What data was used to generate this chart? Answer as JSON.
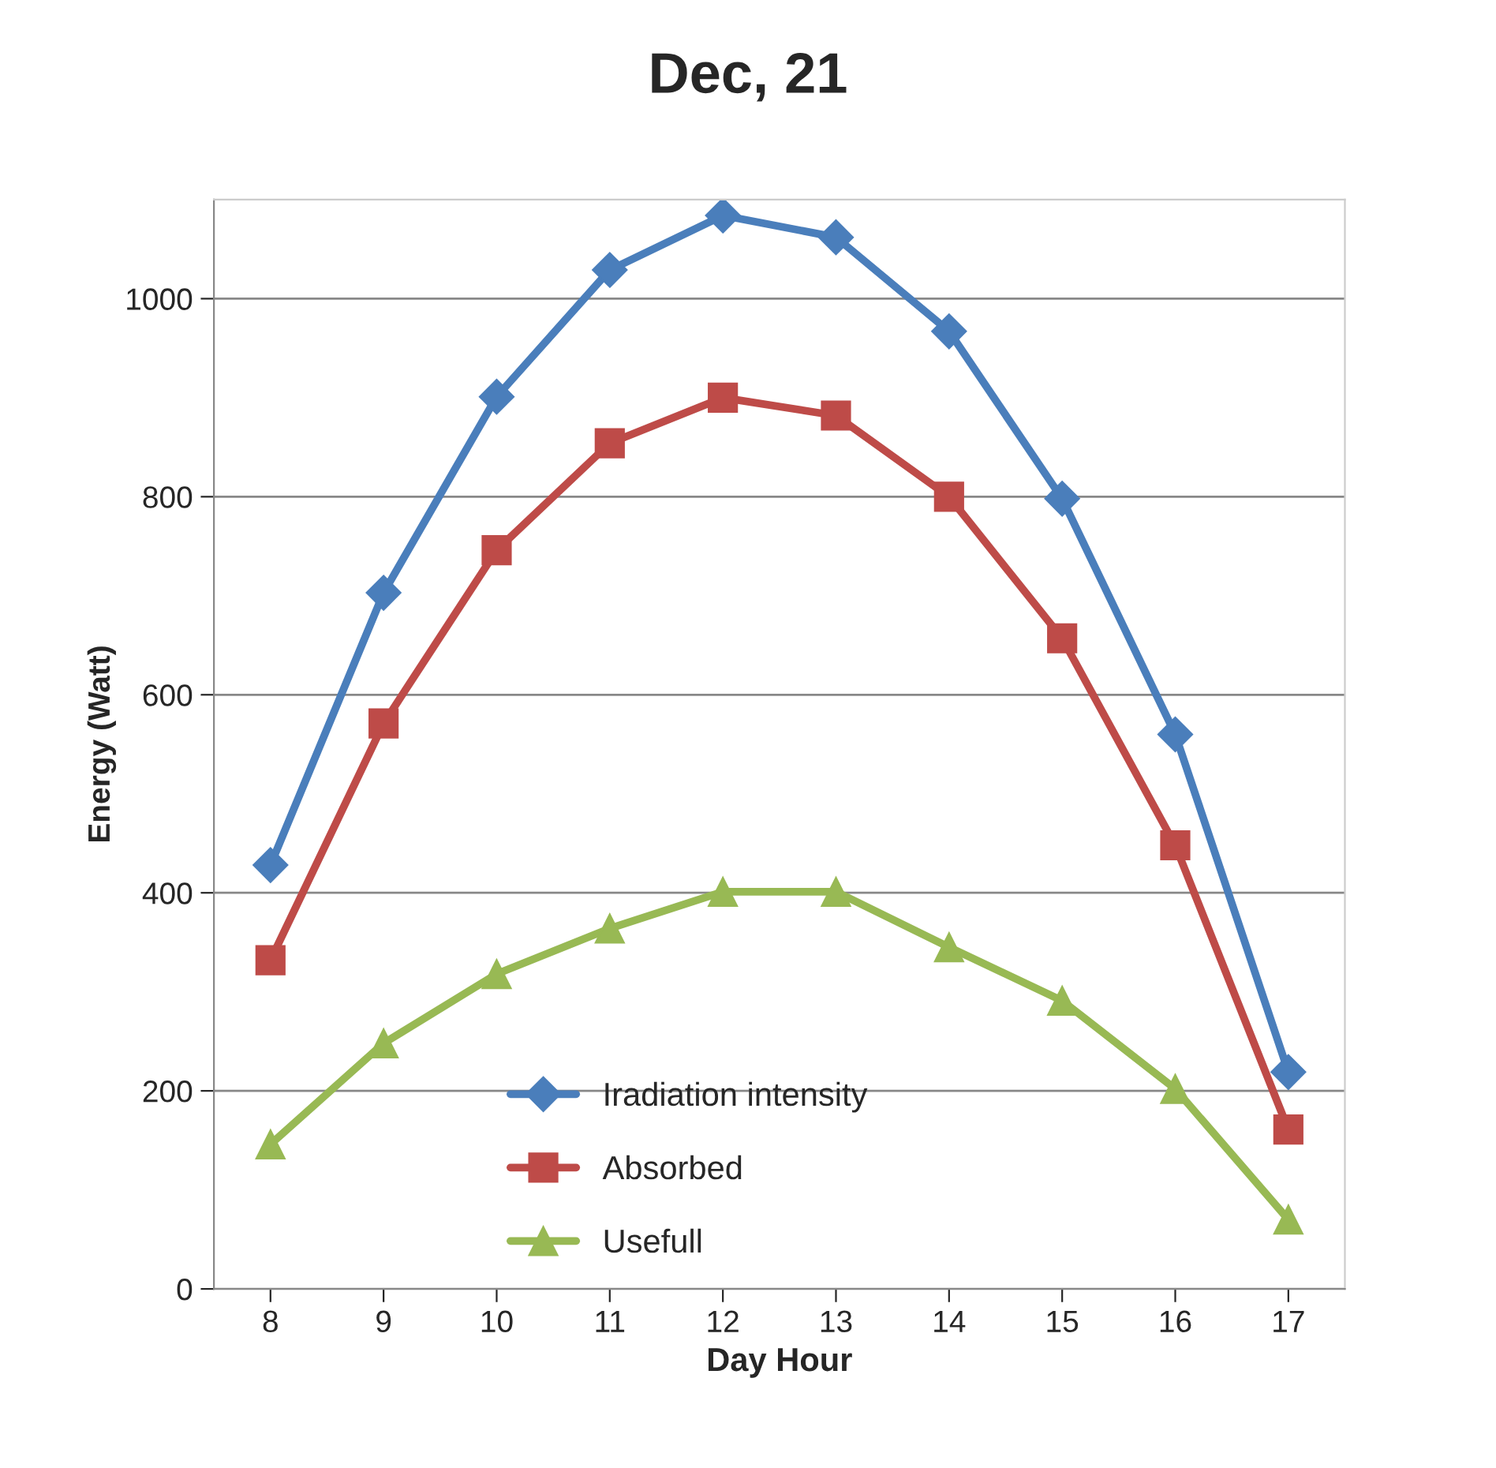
{
  "chart_data": {
    "type": "line",
    "title": "Dec, 21",
    "xlabel": "Day Hour",
    "ylabel": "Energy (Watt)",
    "categories": [
      "8",
      "9",
      "10",
      "11",
      "12",
      "13",
      "14",
      "15",
      "16",
      "17"
    ],
    "series": [
      {
        "name": "Iradiation intensity",
        "color": "#4a7ebb",
        "marker": "diamond",
        "values": [
          428,
          703,
          901,
          1029,
          1084,
          1062,
          967,
          798,
          560,
          219
        ]
      },
      {
        "name": "Absorbed",
        "color": "#be4b48",
        "marker": "square",
        "values": [
          332,
          571,
          746,
          854,
          900,
          882,
          800,
          657,
          448,
          161
        ]
      },
      {
        "name": "Usefull",
        "color": "#98b954",
        "marker": "triangle",
        "values": [
          146,
          248,
          318,
          364,
          401,
          401,
          345,
          291,
          202,
          70
        ]
      }
    ],
    "ylim": [
      0,
      1100
    ],
    "yticks": [
      0,
      200,
      400,
      600,
      800,
      1000
    ],
    "grid": "y",
    "legend": "bottom",
    "line_style": "solid"
  }
}
